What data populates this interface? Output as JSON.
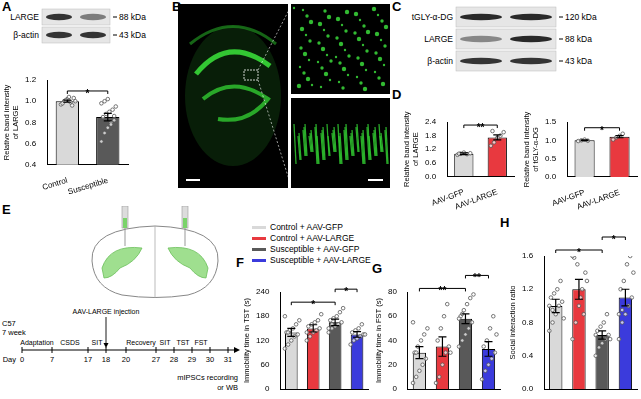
{
  "panel_letters": [
    "A",
    "B",
    "C",
    "D",
    "E",
    "F",
    "G",
    "H"
  ],
  "blots": {
    "A": [
      {
        "label": "LARGE",
        "size": "88 kDa"
      },
      {
        "label": "β-actin",
        "size": "43 kDa"
      }
    ],
    "C": [
      {
        "label": "tGLY-α-DG",
        "size": "120 kDa"
      },
      {
        "label": "LARGE",
        "size": "88 kDa"
      },
      {
        "label": "β-actin",
        "size": "43 kDa"
      }
    ]
  },
  "chart_data": [
    {
      "type": "bar",
      "ylabel": [
        "Relative band intensity",
        "of LARGE"
      ],
      "categories": [
        "Control",
        "Susceptible"
      ],
      "values": [
        1.0,
        0.85
      ],
      "errors": [
        0.01,
        0.035
      ],
      "points": [
        [
          0.97,
          1.0,
          1.02,
          0.99,
          1.03,
          0.98,
          1.01,
          1.04,
          0.96,
          1.0
        ],
        [
          0.62,
          0.7,
          0.75,
          0.8,
          0.82,
          0.85,
          0.88,
          0.9,
          0.92,
          0.95,
          0.98,
          1.0,
          1.02,
          0.78,
          0.86
        ]
      ],
      "colors": [
        "#d9d9d9",
        "#595959"
      ],
      "ylim": [
        0.4,
        1.2
      ],
      "yticks": [
        0.4,
        0.6,
        0.8,
        {
          "value": 1,
          "label": "1.0"
        },
        1.2
      ],
      "grid": false,
      "significance": [
        {
          "from": 0,
          "to": 1,
          "label": "*"
        }
      ]
    },
    {
      "type": "bar",
      "ylabel": [
        "Relative band intensity",
        "of LARGE"
      ],
      "categories": [
        "AAV-GFP",
        "AAV-LARGE"
      ],
      "values": [
        1.0,
        1.72
      ],
      "errors": [
        0.04,
        0.11
      ],
      "points": [
        [
          0.95,
          1.0,
          1.05,
          0.98,
          1.02,
          1.0
        ],
        [
          1.35,
          1.5,
          1.7,
          1.8,
          1.95,
          2.0
        ]
      ],
      "colors": [
        "#d9d9d9",
        "#e8393f"
      ],
      "ylim": [
        0,
        2.4
      ],
      "yticks": [
        {
          "value": 0,
          "label": "0.0"
        },
        0.6,
        1.2,
        1.8,
        2.4
      ],
      "grid": false,
      "significance": [
        {
          "from": 0,
          "to": 1,
          "label": "**"
        }
      ]
    },
    {
      "type": "bar",
      "ylabel": [
        "Relative band intensity",
        "of tGLY-α-DG"
      ],
      "categories": [
        "AAV-GFP",
        "AAV-LARGE"
      ],
      "values": [
        1.0,
        1.1
      ],
      "errors": [
        0.01,
        0.03
      ],
      "points": [
        [
          0.98,
          1.0,
          1.02,
          0.99
        ],
        [
          1.02,
          1.08,
          1.12,
          1.18
        ]
      ],
      "colors": [
        "#d9d9d9",
        "#e8393f"
      ],
      "ylim": [
        0,
        1.5
      ],
      "yticks": [
        {
          "value": 0,
          "label": "0.0"
        },
        0.5,
        {
          "value": 1,
          "label": "1.0"
        },
        1.5
      ],
      "grid": false,
      "significance": [
        {
          "from": 0,
          "to": 1,
          "label": "*"
        }
      ]
    },
    {
      "type": "bar",
      "ylabel": "Immobility time in TST (s)",
      "categories": [
        null,
        null,
        null,
        null
      ],
      "values": [
        140,
        150,
        165,
        135
      ],
      "errors": [
        10,
        9,
        8,
        7
      ],
      "points": [
        [
          100,
          110,
          120,
          130,
          135,
          140,
          145,
          150,
          160,
          170,
          180,
          140
        ],
        [
          120,
          130,
          140,
          145,
          150,
          155,
          160,
          165,
          170,
          185,
          140
        ],
        [
          140,
          150,
          155,
          160,
          165,
          170,
          175,
          180,
          190,
          200,
          150,
          160
        ],
        [
          110,
          120,
          125,
          130,
          135,
          140,
          145,
          150,
          160,
          135
        ]
      ],
      "colors": [
        "#d9d9d9",
        "#e8393f",
        "#595959",
        "#3b3bdc"
      ],
      "ylim": [
        0,
        240
      ],
      "yticks": [
        0,
        60,
        120,
        180,
        240
      ],
      "grid": false,
      "tick_labels": "y",
      "significance": [
        {
          "from": 0,
          "to": 2,
          "label": "*"
        },
        {
          "from": 2,
          "to": 3,
          "label": "*"
        }
      ]
    },
    {
      "type": "bar",
      "ylabel": "Immobility time in FST (s)",
      "categories": [
        null,
        null,
        null,
        null
      ],
      "values": [
        30,
        35,
        58,
        33
      ],
      "errors": [
        5,
        8,
        4,
        6
      ],
      "points": [
        [
          5,
          10,
          15,
          20,
          25,
          30,
          35,
          40,
          45,
          50,
          55,
          30
        ],
        [
          5,
          10,
          20,
          30,
          35,
          40,
          50,
          60,
          70,
          30
        ],
        [
          35,
          40,
          45,
          50,
          55,
          60,
          65,
          70,
          75,
          78,
          58,
          62
        ],
        [
          8,
          15,
          20,
          25,
          30,
          35,
          40,
          50,
          60,
          45
        ]
      ],
      "colors": [
        "#d9d9d9",
        "#e8393f",
        "#595959",
        "#3b3bdc"
      ],
      "ylim": [
        0,
        80
      ],
      "yticks": [
        0,
        20,
        40,
        60,
        80
      ],
      "grid": false,
      "tick_labels": "y",
      "significance": [
        {
          "from": 0,
          "to": 2,
          "label": "**"
        },
        {
          "from": 2,
          "to": 3,
          "label": "**"
        }
      ]
    },
    {
      "type": "bar",
      "ylabel": "Social interaction ratio",
      "categories": [
        null,
        null,
        null,
        null
      ],
      "values": [
        1.0,
        1.2,
        0.65,
        1.1
      ],
      "errors": [
        0.08,
        0.12,
        0.05,
        0.1
      ],
      "points": [
        [
          0.7,
          0.8,
          0.9,
          1.0,
          1.05,
          1.1,
          1.15,
          1.2,
          1.3,
          0.85,
          1.0,
          0.95
        ],
        [
          0.6,
          0.8,
          1.0,
          1.2,
          1.4,
          1.58,
          1.5,
          1.1,
          0.9,
          1.3,
          1.6
        ],
        [
          0.4,
          0.5,
          0.55,
          0.6,
          0.65,
          0.7,
          0.75,
          0.8,
          0.9,
          0.6,
          0.65
        ],
        [
          0.6,
          0.8,
          0.9,
          1.0,
          1.1,
          1.2,
          1.3,
          1.5,
          1.6,
          1.4,
          0.9,
          0.95
        ]
      ],
      "colors": [
        "#d9d9d9",
        "#e8393f",
        "#595959",
        "#3b3bdc"
      ],
      "ylim": [
        0,
        1.6
      ],
      "yticks": [
        {
          "value": 0,
          "label": "0.0"
        },
        0.4,
        0.8,
        1.2,
        1.6
      ],
      "grid": false,
      "tick_labels": "y",
      "significance": [
        {
          "from": 0,
          "to": 2,
          "label": "*"
        },
        {
          "from": 2,
          "to": 3,
          "label": "*"
        }
      ]
    }
  ],
  "legend": [
    {
      "label": "Control + AAV-GFP",
      "color": "#d9d9d9"
    },
    {
      "label": "Control + AAV-LARGE",
      "color": "#e8393f"
    },
    {
      "label": "Susceptible + AAV-GFP",
      "color": "#595959"
    },
    {
      "label": "Susceptible + AAV-LARGE",
      "color": "#3b3bdc"
    }
  ],
  "timeline": {
    "subject": [
      "C57",
      "7 week"
    ],
    "day_label": "Day",
    "days": [
      0,
      7,
      17,
      18,
      20,
      27,
      28,
      29,
      30,
      31
    ],
    "phases": [
      {
        "label": "Adaptation",
        "from": 0,
        "to": 7
      },
      {
        "label": "CSDS",
        "from": 7,
        "to": 17
      },
      {
        "label": "SIT",
        "from": 17,
        "to": 18
      },
      {
        "label": "Recovery",
        "from": 20,
        "to": 27
      },
      {
        "label": "SIT",
        "from": 27,
        "to": 28
      },
      {
        "label": "TST",
        "from": 28,
        "to": 29
      },
      {
        "label": "FST",
        "from": 29,
        "to": 30
      }
    ],
    "injection": {
      "label": "AAV-LARGE injection",
      "day": 18
    },
    "endpoint": [
      "mIPSCs recording",
      "or WB"
    ]
  }
}
